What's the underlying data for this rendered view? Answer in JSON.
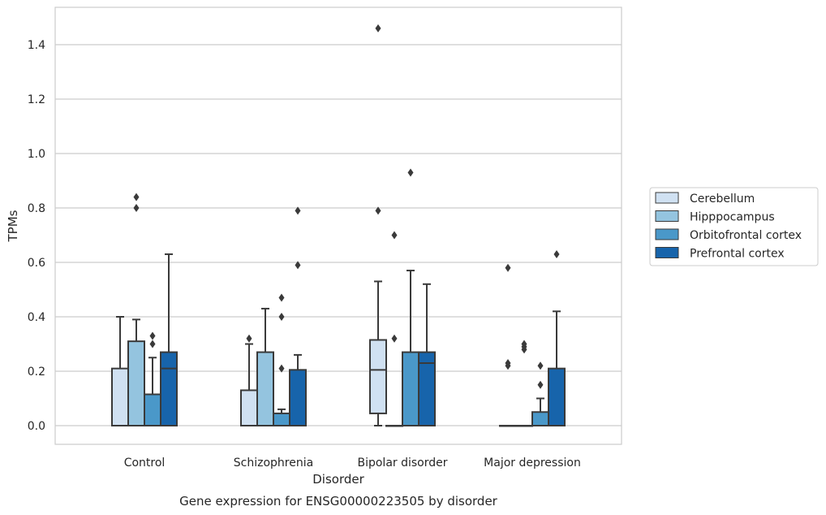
{
  "caption": "Gene expression for ENSG00000223505 by disorder",
  "chart_data": {
    "type": "box",
    "title": "",
    "xlabel": "Disorder",
    "ylabel": "TPMs",
    "categories": [
      "Control",
      "Schizophrenia",
      "Bipolar disorder",
      "Major depression"
    ],
    "ylim": [
      -0.07,
      1.54
    ],
    "yticks": [
      0.0,
      0.2,
      0.4,
      0.6,
      0.8,
      1.0,
      1.2,
      1.4
    ],
    "ytick_labels": [
      "0.0",
      "0.2",
      "0.4",
      "0.6",
      "0.8",
      "1.0",
      "1.2",
      "1.4"
    ],
    "grid": "horizontal",
    "legend_position": "right",
    "series": [
      {
        "name": "Cerebellum",
        "color": "#d0e1f2",
        "boxes": [
          {
            "whislo": 0.0,
            "q1": 0.0,
            "med": 0.0,
            "q3": 0.21,
            "whishi": 0.4,
            "fliers": []
          },
          {
            "whislo": 0.0,
            "q1": 0.0,
            "med": 0.0,
            "q3": 0.13,
            "whishi": 0.3,
            "fliers": [
              0.32
            ]
          },
          {
            "whislo": 0.0,
            "q1": 0.045,
            "med": 0.205,
            "q3": 0.315,
            "whishi": 0.53,
            "fliers": [
              0.79,
              1.46
            ]
          },
          {
            "whislo": 0.0,
            "q1": 0.0,
            "med": 0.0,
            "q3": 0.0,
            "whishi": 0.0,
            "fliers": [
              0.22,
              0.23,
              0.58
            ]
          }
        ]
      },
      {
        "name": "Hipppocampus",
        "color": "#94c4df",
        "boxes": [
          {
            "whislo": 0.0,
            "q1": 0.0,
            "med": 0.0,
            "q3": 0.31,
            "whishi": 0.39,
            "fliers": [
              0.8,
              0.84
            ]
          },
          {
            "whislo": 0.0,
            "q1": 0.0,
            "med": 0.0,
            "q3": 0.27,
            "whishi": 0.43,
            "fliers": []
          },
          {
            "whislo": 0.0,
            "q1": 0.0,
            "med": 0.0,
            "q3": 0.0,
            "whishi": 0.0,
            "fliers": [
              0.32,
              0.7
            ]
          },
          {
            "whislo": 0.0,
            "q1": 0.0,
            "med": 0.0,
            "q3": 0.0,
            "whishi": 0.0,
            "fliers": [
              0.28,
              0.29,
              0.3
            ]
          }
        ]
      },
      {
        "name": "Orbitofrontal cortex",
        "color": "#4a98c9",
        "boxes": [
          {
            "whislo": 0.0,
            "q1": 0.0,
            "med": 0.0,
            "q3": 0.115,
            "whishi": 0.25,
            "fliers": [
              0.3,
              0.33
            ]
          },
          {
            "whislo": 0.0,
            "q1": 0.0,
            "med": 0.0,
            "q3": 0.045,
            "whishi": 0.06,
            "fliers": [
              0.21,
              0.4,
              0.47
            ]
          },
          {
            "whislo": 0.0,
            "q1": 0.0,
            "med": 0.0,
            "q3": 0.27,
            "whishi": 0.57,
            "fliers": [
              0.93
            ]
          },
          {
            "whislo": 0.0,
            "q1": 0.0,
            "med": 0.0,
            "q3": 0.05,
            "whishi": 0.1,
            "fliers": [
              0.15,
              0.22
            ]
          }
        ]
      },
      {
        "name": "Prefrontal cortex",
        "color": "#1764ab",
        "boxes": [
          {
            "whislo": 0.0,
            "q1": 0.0,
            "med": 0.21,
            "q3": 0.27,
            "whishi": 0.63,
            "fliers": []
          },
          {
            "whislo": 0.0,
            "q1": 0.0,
            "med": 0.0,
            "q3": 0.205,
            "whishi": 0.26,
            "fliers": [
              0.59,
              0.79
            ]
          },
          {
            "whislo": 0.0,
            "q1": 0.0,
            "med": 0.23,
            "q3": 0.27,
            "whishi": 0.52,
            "fliers": []
          },
          {
            "whislo": 0.0,
            "q1": 0.0,
            "med": 0.0,
            "q3": 0.21,
            "whishi": 0.42,
            "fliers": [
              0.63
            ]
          }
        ]
      }
    ]
  }
}
